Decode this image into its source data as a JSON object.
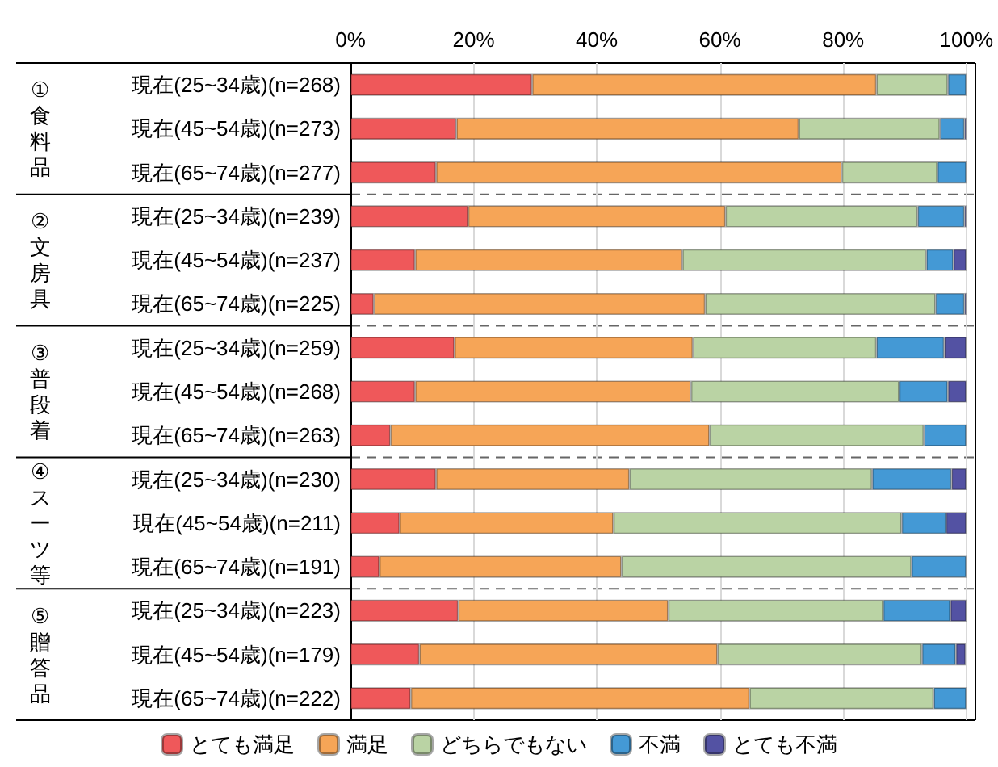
{
  "chart_data": {
    "type": "bar",
    "orientation": "horizontal",
    "stacked": true,
    "legend": "bottom",
    "grid": "x",
    "categories": [
      "現在(25~34歳)(n=268)",
      "現在(45~54歳)(n=273)",
      "現在(65~74歳)(n=277)",
      "現在(25~34歳)(n=239)",
      "現在(45~54歳)(n=237)",
      "現在(65~74歳)(n=225)",
      "現在(25~34歳)(n=259)",
      "現在(45~54歳)(n=268)",
      "現在(65~74歳)(n=263)",
      "現在(25~34歳)(n=230)",
      "現在(45~54歳)(n=211)",
      "現在(65~74歳)(n=191)",
      "現在(25~34歳)(n=223)",
      "現在(45~54歳)(n=179)",
      "現在(65~74歳)(n=222)"
    ],
    "annotations": [
      "①食料品",
      "②文房具",
      "③普段着",
      "④スーツ等",
      "⑤贈答品"
    ],
    "xlim": [
      0,
      100
    ],
    "xticks": [
      {
        "value": 0,
        "label": "0%"
      },
      {
        "value": 20,
        "label": "20%"
      },
      {
        "value": 40,
        "label": "40%"
      },
      {
        "value": 60,
        "label": "60%"
      },
      {
        "value": 80,
        "label": "80%"
      },
      {
        "value": 100,
        "label": "100%"
      }
    ],
    "series": [
      {
        "name": "とても満足",
        "color": "#ef585a",
        "values": [
          29.5,
          17.2,
          13.9,
          19.1,
          10.5,
          3.8,
          16.9,
          10.5,
          6.5,
          13.9,
          8.0,
          4.7,
          17.5,
          11.2,
          9.8
        ]
      },
      {
        "name": "満足",
        "color": "#f6a557",
        "values": [
          55.9,
          55.6,
          65.9,
          41.8,
          43.4,
          53.8,
          38.7,
          44.8,
          51.8,
          31.4,
          34.7,
          39.3,
          34.1,
          48.4,
          55.0
        ]
      },
      {
        "name": "どちらでもない",
        "color": "#bad3a4",
        "values": [
          11.6,
          22.9,
          15.5,
          31.2,
          39.6,
          37.4,
          29.8,
          33.8,
          34.8,
          39.4,
          46.8,
          47.1,
          34.9,
          33.2,
          29.9
        ]
      },
      {
        "name": "不満",
        "color": "#4499d5",
        "values": [
          3.0,
          4.0,
          4.7,
          7.6,
          4.4,
          4.7,
          11.0,
          7.9,
          6.9,
          12.9,
          7.2,
          8.9,
          10.9,
          5.5,
          5.3
        ]
      },
      {
        "name": "とても不満",
        "color": "#5352a3",
        "values": [
          0,
          0.3,
          0,
          0.3,
          2.1,
          0.3,
          3.6,
          3.0,
          0,
          2.4,
          3.3,
          0,
          2.6,
          1.6,
          0
        ]
      }
    ]
  }
}
